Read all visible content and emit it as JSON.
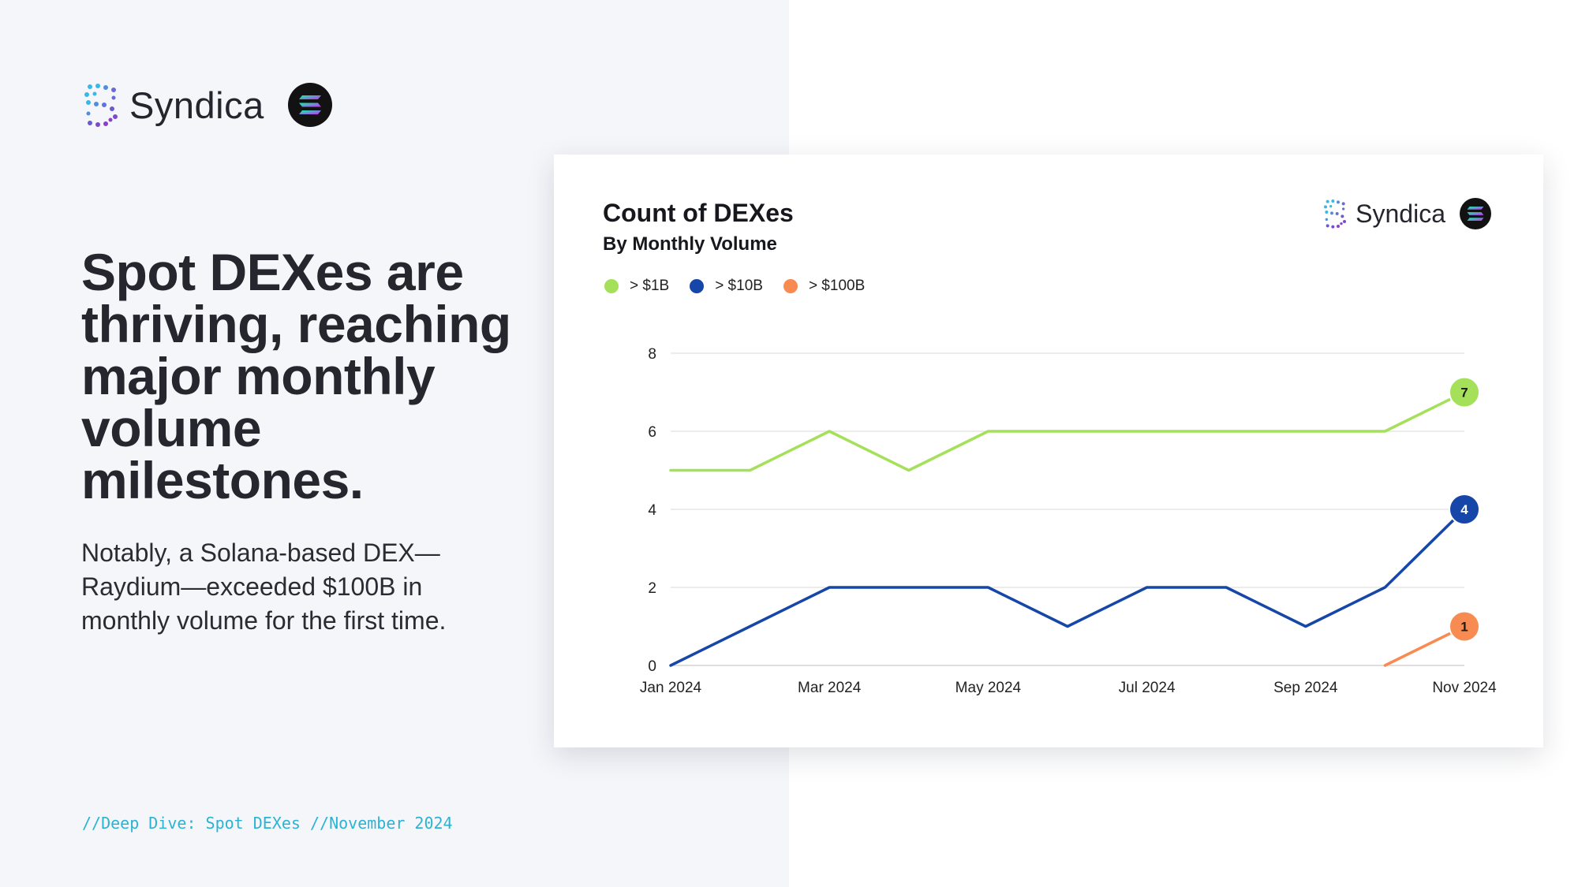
{
  "brand": {
    "name": "Syndica"
  },
  "headline": "Spot DEXes are thriving, reaching major monthly volume milestones.",
  "subtext": "Notably, a Solana-based DEX—Raydium—exceeded $100B in monthly volume for the first time.",
  "footer": "//Deep Dive: Spot DEXes //November 2024",
  "colors": {
    "green": "#a5e05a",
    "blue": "#1546a8",
    "orange": "#f78b52",
    "accent": "#2bb3d4"
  },
  "chart_data": {
    "type": "line",
    "title": "Count of DEXes",
    "subtitle": "By Monthly Volume",
    "x": [
      "Jan 2024",
      "Feb 2024",
      "Mar 2024",
      "Apr 2024",
      "May 2024",
      "Jun 2024",
      "Jul 2024",
      "Aug 2024",
      "Sep 2024",
      "Oct 2024",
      "Nov 2024"
    ],
    "x_ticks": [
      "Jan 2024",
      "Mar 2024",
      "May 2024",
      "Jul 2024",
      "Sep 2024",
      "Nov 2024"
    ],
    "y_ticks": [
      0,
      2,
      4,
      6,
      8
    ],
    "ylim": [
      0,
      8
    ],
    "grid": true,
    "legend_position": "top-left",
    "series": [
      {
        "name": "> $1B",
        "color": "#a5e05a",
        "values": [
          5,
          5,
          6,
          5,
          6,
          6,
          6,
          6,
          6,
          6,
          7
        ],
        "end_label": "7"
      },
      {
        "name": "> $10B",
        "color": "#1546a8",
        "values": [
          0,
          1,
          2,
          2,
          2,
          1,
          2,
          2,
          1,
          2,
          4
        ],
        "end_label": "4"
      },
      {
        "name": "> $100B",
        "color": "#f78b52",
        "values": [
          null,
          null,
          null,
          null,
          null,
          null,
          null,
          null,
          null,
          0,
          1
        ],
        "end_label": "1"
      }
    ]
  }
}
